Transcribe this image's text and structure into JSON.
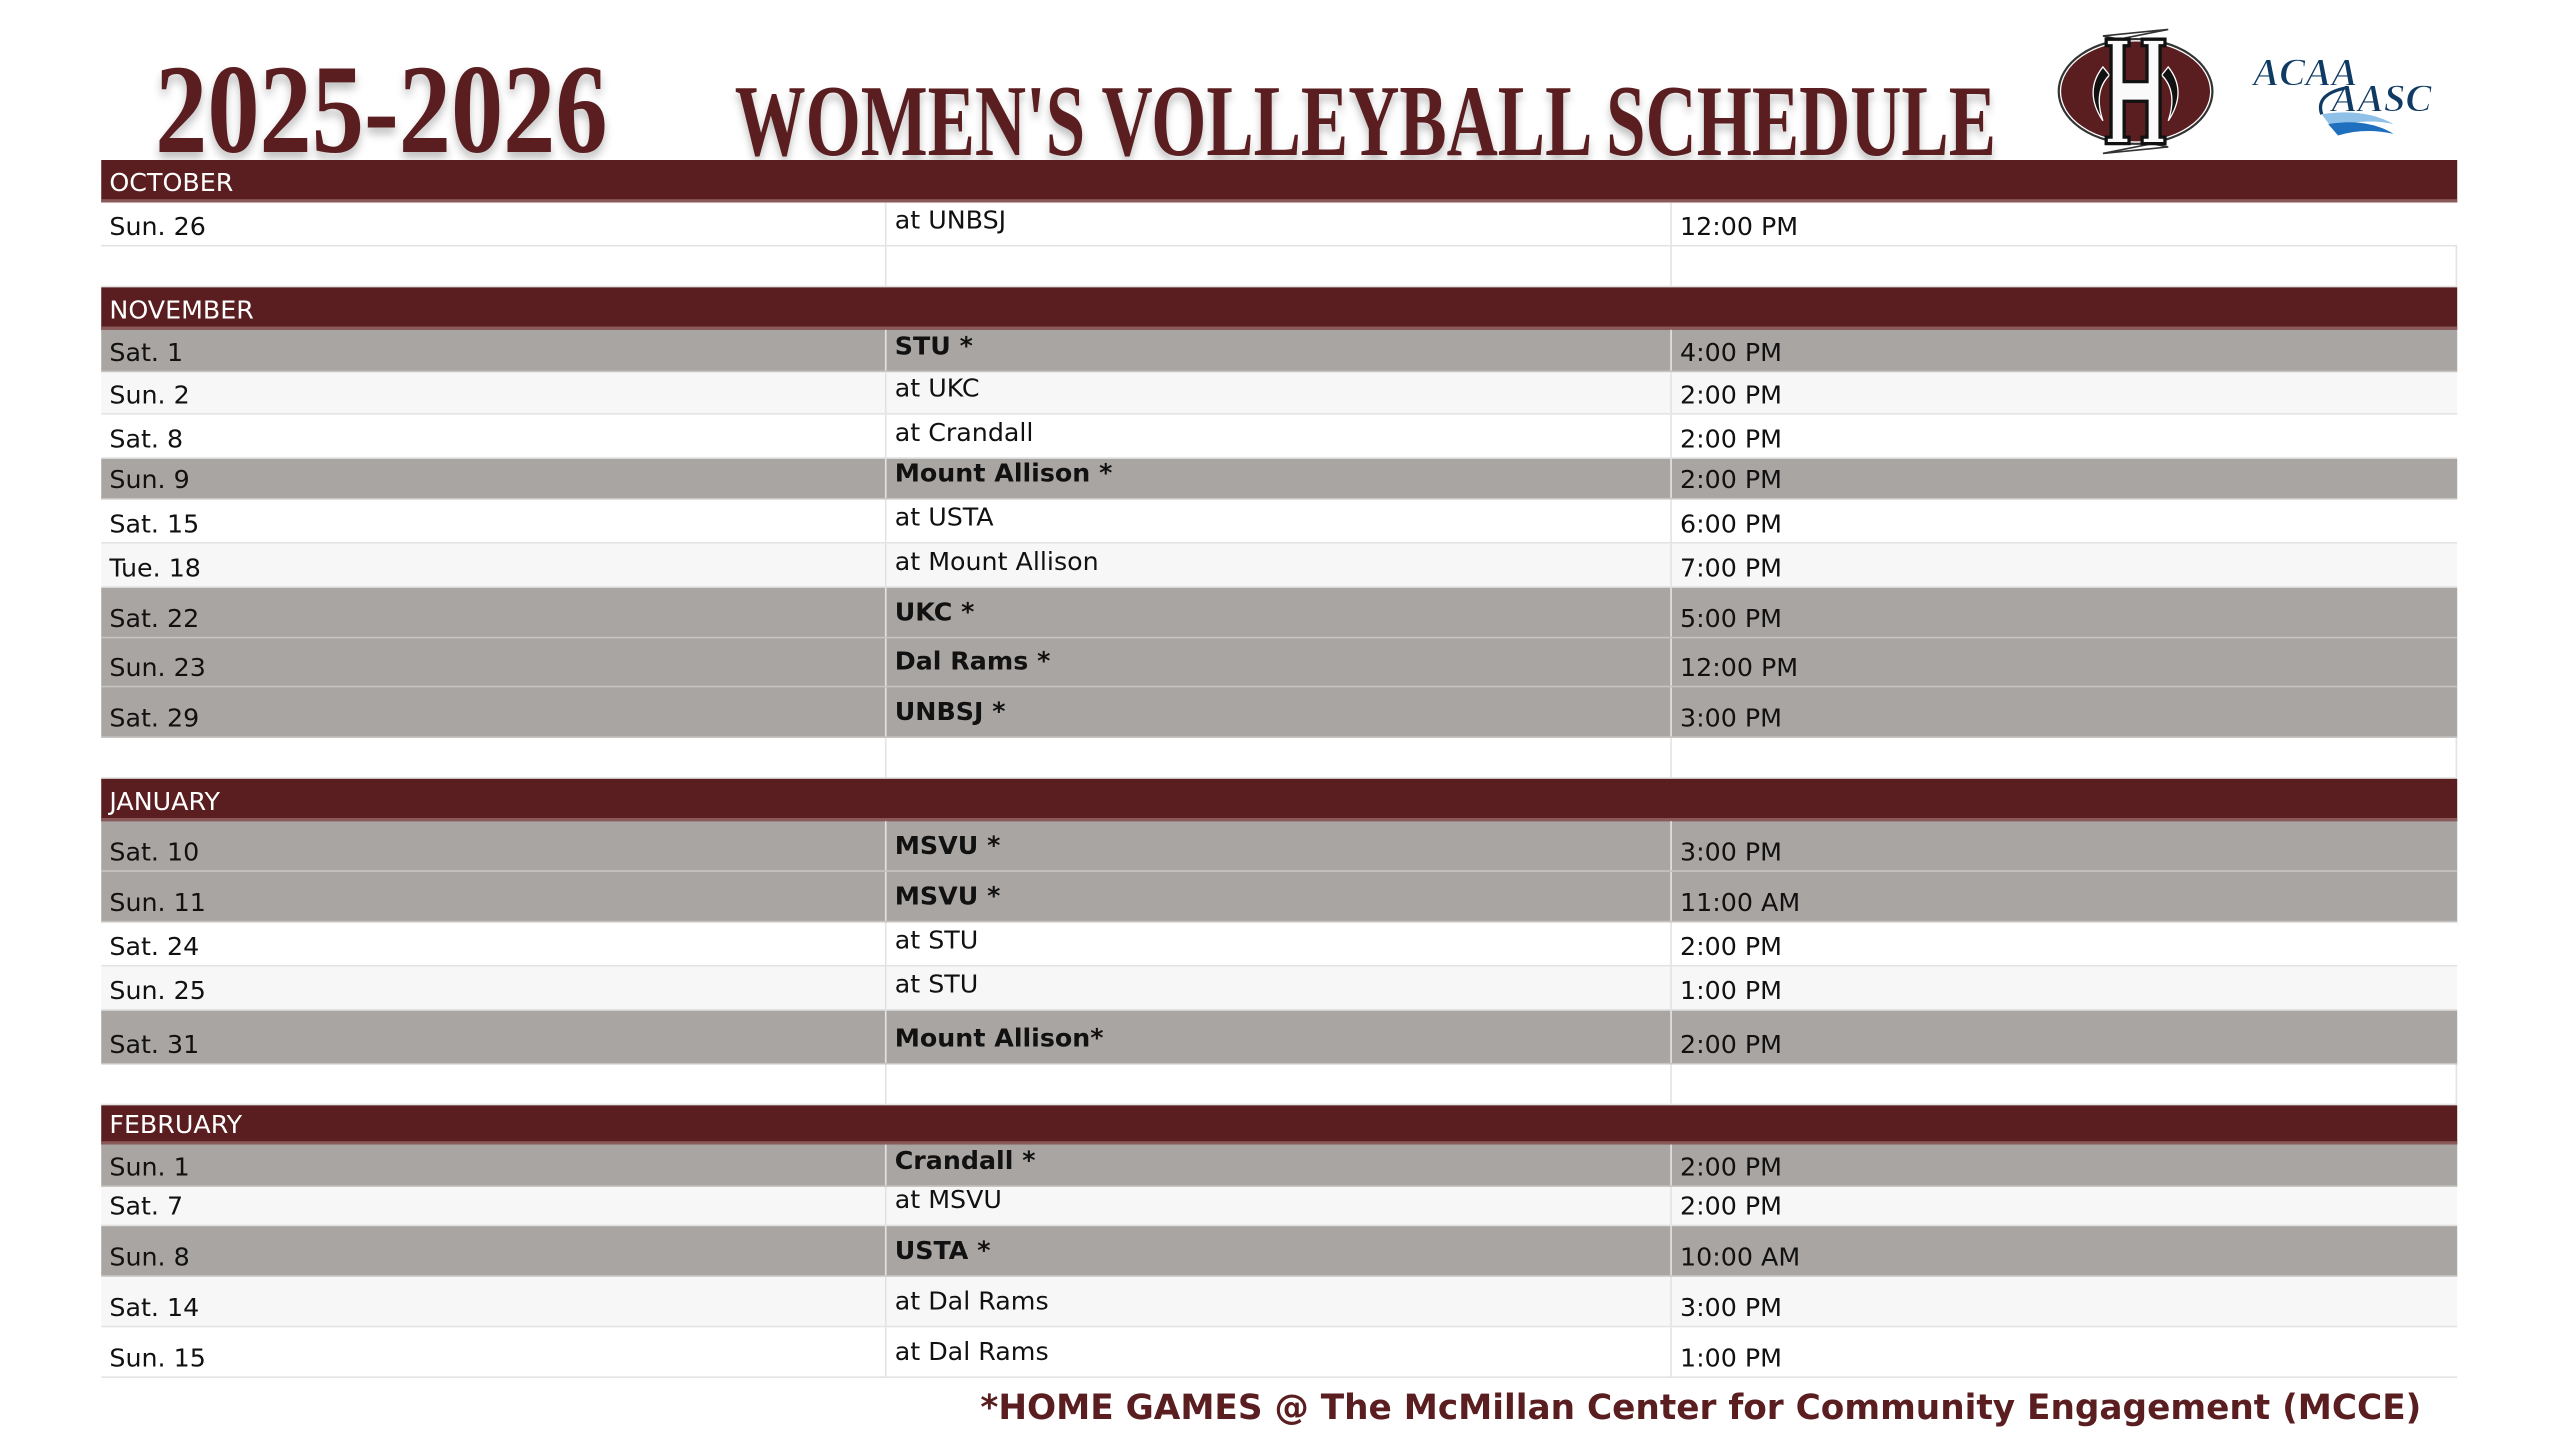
{
  "header": {
    "season": "2025-2026",
    "title": "WOMEN'S VOLLEYBALL SCHEDULE",
    "logos": {
      "school": "H",
      "conference_top": "ACAA",
      "conference_bottom": "AASC"
    }
  },
  "colors": {
    "maroon": "#5a1e20",
    "home_row": "#a9a5a2",
    "alt_row": "#f7f7f7",
    "conference_blue": "#0f3a63"
  },
  "schedule": [
    {
      "month": "OCTOBER",
      "games": [
        {
          "date": "Sun. 26",
          "opponent": "at UNBSJ",
          "time": "12:00 PM",
          "home": false
        }
      ]
    },
    {
      "month": "NOVEMBER",
      "games": [
        {
          "date": "Sat. 1",
          "opponent": "STU *",
          "time": "4:00 PM",
          "home": true
        },
        {
          "date": "Sun. 2",
          "opponent": "at UKC",
          "time": "2:00 PM",
          "home": false
        },
        {
          "date": "Sat. 8",
          "opponent": "at Crandall",
          "time": "2:00 PM",
          "home": false
        },
        {
          "date": "Sun. 9",
          "opponent": "Mount Allison *",
          "time": "2:00 PM",
          "home": true
        },
        {
          "date": "Sat. 15",
          "opponent": "at USTA",
          "time": "6:00 PM",
          "home": false
        },
        {
          "date": "Tue. 18",
          "opponent": "at Mount Allison",
          "time": "7:00 PM",
          "home": false
        },
        {
          "date": "Sat. 22",
          "opponent": "UKC *",
          "time": "5:00 PM",
          "home": true
        },
        {
          "date": "Sun. 23",
          "opponent": "Dal Rams *",
          "time": "12:00 PM",
          "home": true
        },
        {
          "date": "Sat. 29",
          "opponent": "UNBSJ *",
          "time": "3:00 PM",
          "home": true
        }
      ]
    },
    {
      "month": "JANUARY",
      "games": [
        {
          "date": "Sat. 10",
          "opponent": "MSVU *",
          "time": "3:00 PM",
          "home": true
        },
        {
          "date": "Sun. 11",
          "opponent": "MSVU *",
          "time": "11:00 AM",
          "home": true
        },
        {
          "date": "Sat. 24",
          "opponent": "at STU",
          "time": "2:00 PM",
          "home": false
        },
        {
          "date": "Sun. 25",
          "opponent": "at STU",
          "time": "1:00 PM",
          "home": false
        },
        {
          "date": "Sat. 31",
          "opponent": "Mount Allison*",
          "time": "2:00 PM",
          "home": true
        }
      ]
    },
    {
      "month": "FEBRUARY",
      "games": [
        {
          "date": "Sun. 1",
          "opponent": "Crandall *",
          "time": "2:00 PM",
          "home": true
        },
        {
          "date": "Sat. 7",
          "opponent": "at MSVU",
          "time": "2:00 PM",
          "home": false
        },
        {
          "date": "Sun. 8",
          "opponent": "USTA *",
          "time": "10:00 AM",
          "home": true
        },
        {
          "date": "Sat. 14",
          "opponent": "at Dal Rams",
          "time": "3:00 PM",
          "home": false
        },
        {
          "date": "Sun. 15",
          "opponent": "at Dal Rams",
          "time": "1:00 PM",
          "home": false
        }
      ]
    }
  ],
  "footnote": "*HOME GAMES @ The McMillan Center for Community Engagement (MCCE)"
}
